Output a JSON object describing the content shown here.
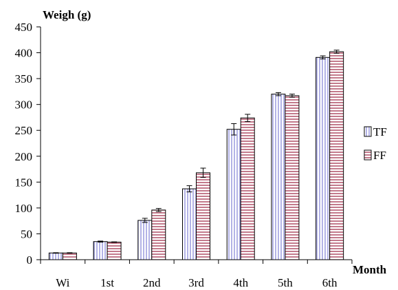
{
  "chart_data": {
    "type": "bar",
    "ylabel": "Weigh (g)",
    "xlabel": "Month",
    "ylim": [
      0,
      450
    ],
    "yticks": [
      0,
      50,
      100,
      150,
      200,
      250,
      300,
      350,
      400,
      450
    ],
    "categories": [
      "Wi",
      "1st",
      "2nd",
      "3rd",
      "4th",
      "5th",
      "6th"
    ],
    "legend_position": "right",
    "series": [
      {
        "name": "TF",
        "pattern": "vertical-stripes",
        "color": "#8a8ad8",
        "values": [
          13,
          35,
          76,
          137,
          252,
          320,
          391
        ],
        "errors": [
          0.5,
          1,
          4,
          6,
          11,
          3,
          3
        ]
      },
      {
        "name": "FF",
        "pattern": "horizontal-stripes",
        "color": "#a3334f",
        "values": [
          13,
          34,
          96,
          168,
          274,
          317,
          402
        ],
        "errors": [
          0.5,
          0.5,
          3,
          9,
          7,
          3,
          3
        ]
      }
    ]
  }
}
